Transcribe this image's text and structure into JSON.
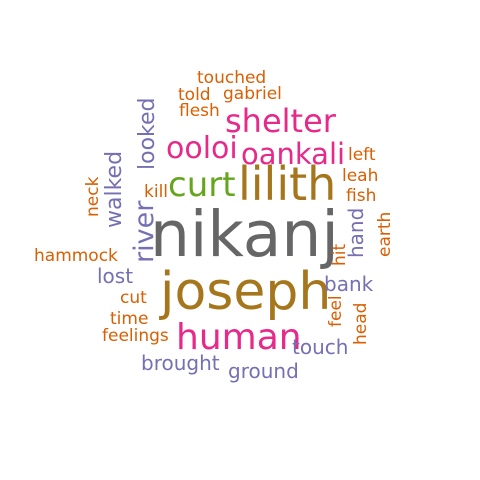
{
  "palette": {
    "gray": "#666666",
    "gold": "#a6761d",
    "magenta": "#e7298a",
    "green": "#66a61e",
    "orange": "#d95f02",
    "purple": "#7570b3"
  },
  "words": [
    {
      "text": "nikanj",
      "color": "#666666"
    },
    {
      "text": "joseph",
      "color": "#a6761d"
    },
    {
      "text": "lilith",
      "color": "#a6761d"
    },
    {
      "text": "human",
      "color": "#e7298a"
    },
    {
      "text": "curt",
      "color": "#66a61e"
    },
    {
      "text": "shelter",
      "color": "#e7298a"
    },
    {
      "text": "ooloi",
      "color": "#e7298a"
    },
    {
      "text": "oankali",
      "color": "#e7298a"
    },
    {
      "text": "river",
      "color": "#7570b3"
    },
    {
      "text": "looked",
      "color": "#7570b3"
    },
    {
      "text": "walked",
      "color": "#7570b3"
    },
    {
      "text": "touched",
      "color": "#d95f02"
    },
    {
      "text": "told",
      "color": "#d95f02"
    },
    {
      "text": "gabriel",
      "color": "#d95f02"
    },
    {
      "text": "flesh",
      "color": "#d95f02"
    },
    {
      "text": "left",
      "color": "#d95f02"
    },
    {
      "text": "leah",
      "color": "#d95f02"
    },
    {
      "text": "fish",
      "color": "#d95f02"
    },
    {
      "text": "kill",
      "color": "#d95f02"
    },
    {
      "text": "neck",
      "color": "#d95f02"
    },
    {
      "text": "hand",
      "color": "#7570b3"
    },
    {
      "text": "earth",
      "color": "#d95f02"
    },
    {
      "text": "hit",
      "color": "#d95f02"
    },
    {
      "text": "hammock",
      "color": "#d95f02"
    },
    {
      "text": "lost",
      "color": "#7570b3"
    },
    {
      "text": "bank",
      "color": "#7570b3"
    },
    {
      "text": "cut",
      "color": "#d95f02"
    },
    {
      "text": "feel",
      "color": "#d95f02"
    },
    {
      "text": "head",
      "color": "#d95f02"
    },
    {
      "text": "time",
      "color": "#d95f02"
    },
    {
      "text": "feelings",
      "color": "#d95f02"
    },
    {
      "text": "touch",
      "color": "#7570b3"
    },
    {
      "text": "brought",
      "color": "#7570b3"
    },
    {
      "text": "ground",
      "color": "#7570b3"
    }
  ]
}
